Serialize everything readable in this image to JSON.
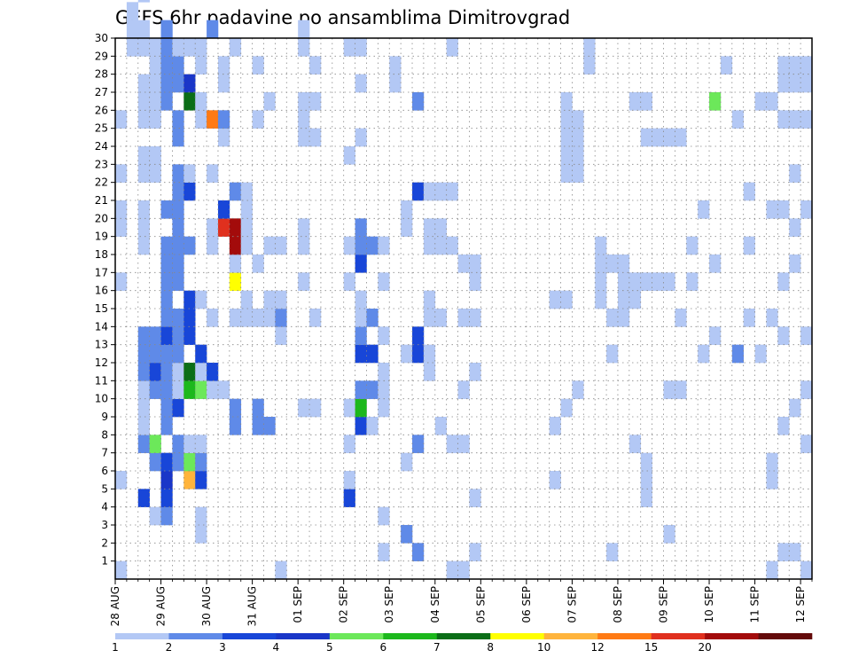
{
  "chart_data": {
    "type": "heatmap",
    "title": "GEFS 6hr padavine po ansamblima Dimitrovgrad",
    "y_ticks": [
      "1",
      "2",
      "3",
      "4",
      "5",
      "6",
      "7",
      "8",
      "9",
      "10",
      "11",
      "12",
      "13",
      "14",
      "15",
      "16",
      "17",
      "18",
      "19",
      "20",
      "21",
      "22",
      "23",
      "24",
      "25",
      "26",
      "27",
      "28",
      "29",
      "30"
    ],
    "x_ticks": [
      "28 AUG",
      "29 AUG",
      "30 AUG",
      "31 AUG",
      "01 SEP",
      "02 SEP",
      "03 SEP",
      "04 SEP",
      "05 SEP",
      "06 SEP",
      "07 SEP",
      "08 SEP",
      "09 SEP",
      "10 SEP",
      "11 SEP",
      "12 SEP"
    ],
    "legend": {
      "labels": [
        "1",
        "2",
        "3",
        "4",
        "5",
        "6",
        "7",
        "8",
        "10",
        "12",
        "15",
        "20"
      ],
      "colors": [
        "#b3c8f5",
        "#5f8ae8",
        "#1846d8",
        "#1a36c8",
        "#6ce85a",
        "#1cb81c",
        "#0b6e17",
        "#ffff00",
        "#ffb43c",
        "#ff7a14",
        "#e0301e",
        "#a30b0b",
        "#640a0a"
      ]
    },
    "cells": [
      [
        0,
        0,
        1
      ],
      [
        0,
        5,
        1
      ],
      [
        0,
        16,
        1
      ],
      [
        0,
        19,
        1
      ],
      [
        0,
        20,
        1
      ],
      [
        0,
        22,
        1
      ],
      [
        0,
        25,
        1
      ],
      [
        0,
        33,
        1
      ],
      [
        0,
        36,
        1
      ],
      [
        0,
        46,
        1
      ],
      [
        0,
        49,
        1
      ],
      [
        0,
        58,
        1
      ],
      [
        0,
        67,
        1
      ],
      [
        0,
        76,
        1
      ],
      [
        1,
        29,
        1
      ],
      [
        1,
        30,
        1
      ],
      [
        1,
        31,
        1
      ],
      [
        1,
        58,
        1
      ],
      [
        1,
        61,
        1
      ],
      [
        2,
        4,
        3
      ],
      [
        2,
        7,
        2
      ],
      [
        2,
        8,
        1
      ],
      [
        2,
        9,
        1
      ],
      [
        2,
        10,
        1
      ],
      [
        2,
        11,
        2
      ],
      [
        2,
        12,
        2
      ],
      [
        2,
        13,
        2
      ],
      [
        2,
        18,
        1
      ],
      [
        2,
        19,
        1
      ],
      [
        2,
        20,
        1
      ],
      [
        2,
        22,
        1
      ],
      [
        2,
        23,
        1
      ],
      [
        2,
        25,
        1
      ],
      [
        2,
        26,
        1
      ],
      [
        2,
        27,
        1
      ],
      [
        2,
        29,
        1
      ],
      [
        2,
        30,
        1
      ],
      [
        2,
        32,
        1
      ],
      [
        2,
        33,
        2
      ],
      [
        2,
        35,
        1
      ],
      [
        2,
        36,
        1
      ],
      [
        2,
        40,
        1
      ],
      [
        2,
        42,
        1
      ],
      [
        2,
        44,
        1
      ],
      [
        2,
        45,
        1
      ],
      [
        2,
        46,
        1
      ],
      [
        2,
        49,
        1
      ],
      [
        2,
        50,
        1
      ],
      [
        2,
        51,
        1
      ],
      [
        2,
        54,
        2
      ],
      [
        2,
        58,
        1
      ],
      [
        2,
        59,
        1
      ],
      [
        2,
        60,
        1
      ],
      [
        2,
        68,
        1
      ],
      [
        2,
        77,
        1
      ],
      [
        2,
        78,
        3
      ],
      [
        2,
        79,
        1
      ],
      [
        2,
        81,
        1
      ],
      [
        3,
        3,
        1
      ],
      [
        3,
        6,
        2
      ],
      [
        3,
        7,
        5
      ],
      [
        3,
        10,
        2
      ],
      [
        3,
        11,
        3
      ],
      [
        3,
        12,
        2
      ],
      [
        3,
        13,
        2
      ],
      [
        3,
        22,
        1
      ],
      [
        3,
        23,
        1
      ],
      [
        3,
        25,
        1
      ],
      [
        3,
        26,
        1
      ],
      [
        3,
        27,
        1
      ],
      [
        3,
        28,
        1
      ],
      [
        3,
        29,
        1
      ],
      [
        4,
        3,
        2
      ],
      [
        4,
        4,
        3
      ],
      [
        4,
        5,
        4
      ],
      [
        4,
        6,
        3
      ],
      [
        4,
        8,
        2
      ],
      [
        4,
        9,
        2
      ],
      [
        4,
        10,
        2
      ],
      [
        4,
        11,
        2
      ],
      [
        4,
        12,
        2
      ],
      [
        4,
        13,
        3
      ],
      [
        4,
        14,
        2
      ],
      [
        4,
        15,
        2
      ],
      [
        4,
        16,
        2
      ],
      [
        4,
        17,
        2
      ],
      [
        4,
        18,
        2
      ],
      [
        4,
        20,
        2
      ],
      [
        4,
        26,
        2
      ],
      [
        4,
        27,
        2
      ],
      [
        4,
        28,
        2
      ],
      [
        4,
        29,
        2
      ],
      [
        4,
        30,
        2
      ],
      [
        5,
        6,
        2
      ],
      [
        5,
        7,
        2
      ],
      [
        5,
        9,
        3
      ],
      [
        5,
        10,
        1
      ],
      [
        5,
        11,
        1
      ],
      [
        5,
        12,
        2
      ],
      [
        5,
        13,
        2
      ],
      [
        5,
        14,
        2
      ],
      [
        5,
        16,
        2
      ],
      [
        5,
        17,
        2
      ],
      [
        5,
        18,
        2
      ],
      [
        5,
        19,
        2
      ],
      [
        5,
        20,
        2
      ],
      [
        5,
        21,
        2
      ],
      [
        5,
        22,
        2
      ],
      [
        5,
        24,
        2
      ],
      [
        5,
        25,
        2
      ],
      [
        5,
        27,
        2
      ],
      [
        5,
        28,
        2
      ],
      [
        5,
        29,
        1
      ],
      [
        6,
        5,
        9
      ],
      [
        6,
        6,
        5
      ],
      [
        6,
        7,
        1
      ],
      [
        6,
        10,
        6
      ],
      [
        6,
        11,
        7
      ],
      [
        6,
        13,
        3
      ],
      [
        6,
        14,
        3
      ],
      [
        6,
        15,
        3
      ],
      [
        6,
        18,
        2
      ],
      [
        6,
        21,
        3
      ],
      [
        6,
        22,
        1
      ],
      [
        6,
        26,
        7
      ],
      [
        6,
        27,
        4
      ],
      [
        6,
        29,
        1
      ],
      [
        7,
        2,
        1
      ],
      [
        7,
        3,
        1
      ],
      [
        7,
        5,
        3
      ],
      [
        7,
        6,
        2
      ],
      [
        7,
        7,
        1
      ],
      [
        7,
        10,
        5
      ],
      [
        7,
        11,
        1
      ],
      [
        7,
        12,
        3
      ],
      [
        7,
        15,
        1
      ],
      [
        7,
        25,
        1
      ],
      [
        7,
        26,
        1
      ],
      [
        7,
        28,
        1
      ],
      [
        7,
        29,
        1
      ],
      [
        8,
        10,
        1
      ],
      [
        8,
        11,
        3
      ],
      [
        8,
        14,
        1
      ],
      [
        8,
        18,
        1
      ],
      [
        8,
        19,
        1
      ],
      [
        8,
        22,
        1
      ],
      [
        8,
        25,
        10
      ],
      [
        8,
        30,
        2
      ],
      [
        9,
        10,
        1
      ],
      [
        9,
        19,
        11
      ],
      [
        9,
        20,
        3
      ],
      [
        9,
        24,
        1
      ],
      [
        9,
        25,
        2
      ],
      [
        9,
        27,
        1
      ],
      [
        9,
        28,
        1
      ],
      [
        10,
        8,
        2
      ],
      [
        10,
        9,
        2
      ],
      [
        10,
        14,
        1
      ],
      [
        10,
        16,
        8
      ],
      [
        10,
        17,
        1
      ],
      [
        10,
        18,
        12
      ],
      [
        10,
        19,
        12
      ],
      [
        10,
        21,
        2
      ],
      [
        10,
        29,
        1
      ],
      [
        11,
        14,
        1
      ],
      [
        11,
        15,
        1
      ],
      [
        11,
        18,
        1
      ],
      [
        11,
        19,
        1
      ],
      [
        11,
        20,
        1
      ],
      [
        11,
        21,
        1
      ],
      [
        12,
        8,
        2
      ],
      [
        12,
        9,
        2
      ],
      [
        12,
        14,
        1
      ],
      [
        12,
        17,
        1
      ],
      [
        12,
        25,
        1
      ],
      [
        12,
        28,
        1
      ],
      [
        13,
        8,
        2
      ],
      [
        13,
        14,
        1
      ],
      [
        13,
        15,
        1
      ],
      [
        13,
        18,
        1
      ],
      [
        13,
        26,
        1
      ],
      [
        14,
        0,
        1
      ],
      [
        14,
        13,
        1
      ],
      [
        14,
        14,
        2
      ],
      [
        14,
        15,
        1
      ],
      [
        14,
        18,
        1
      ],
      [
        16,
        9,
        1
      ],
      [
        16,
        16,
        1
      ],
      [
        16,
        18,
        1
      ],
      [
        16,
        19,
        1
      ],
      [
        16,
        24,
        1
      ],
      [
        16,
        25,
        1
      ],
      [
        16,
        26,
        1
      ],
      [
        16,
        29,
        1
      ],
      [
        16,
        30,
        1
      ],
      [
        17,
        9,
        1
      ],
      [
        17,
        14,
        1
      ],
      [
        17,
        24,
        1
      ],
      [
        17,
        26,
        1
      ],
      [
        17,
        28,
        1
      ],
      [
        20,
        4,
        3
      ],
      [
        20,
        5,
        1
      ],
      [
        20,
        7,
        1
      ],
      [
        20,
        9,
        1
      ],
      [
        20,
        16,
        1
      ],
      [
        20,
        18,
        1
      ],
      [
        20,
        23,
        1
      ],
      [
        20,
        29,
        1
      ],
      [
        21,
        8,
        3
      ],
      [
        21,
        9,
        6
      ],
      [
        21,
        10,
        2
      ],
      [
        21,
        12,
        3
      ],
      [
        21,
        13,
        2
      ],
      [
        21,
        14,
        1
      ],
      [
        21,
        15,
        1
      ],
      [
        21,
        17,
        3
      ],
      [
        21,
        18,
        2
      ],
      [
        21,
        19,
        2
      ],
      [
        21,
        24,
        1
      ],
      [
        21,
        27,
        1
      ],
      [
        21,
        29,
        1
      ],
      [
        22,
        8,
        1
      ],
      [
        22,
        10,
        2
      ],
      [
        22,
        12,
        3
      ],
      [
        22,
        14,
        2
      ],
      [
        22,
        18,
        2
      ],
      [
        23,
        1,
        1
      ],
      [
        23,
        3,
        1
      ],
      [
        23,
        9,
        1
      ],
      [
        23,
        10,
        1
      ],
      [
        23,
        11,
        1
      ],
      [
        23,
        13,
        1
      ],
      [
        23,
        16,
        1
      ],
      [
        23,
        18,
        1
      ],
      [
        24,
        27,
        1
      ],
      [
        24,
        28,
        1
      ],
      [
        25,
        2,
        2
      ],
      [
        25,
        6,
        1
      ],
      [
        25,
        12,
        1
      ],
      [
        25,
        19,
        1
      ],
      [
        25,
        20,
        1
      ],
      [
        26,
        1,
        2
      ],
      [
        26,
        7,
        2
      ],
      [
        26,
        12,
        3
      ],
      [
        26,
        13,
        3
      ],
      [
        26,
        21,
        3
      ],
      [
        26,
        26,
        2
      ],
      [
        27,
        11,
        1
      ],
      [
        27,
        12,
        1
      ],
      [
        27,
        14,
        1
      ],
      [
        27,
        15,
        1
      ],
      [
        27,
        18,
        1
      ],
      [
        27,
        19,
        1
      ],
      [
        27,
        21,
        1
      ],
      [
        28,
        8,
        1
      ],
      [
        28,
        14,
        1
      ],
      [
        28,
        18,
        1
      ],
      [
        28,
        19,
        1
      ],
      [
        28,
        21,
        1
      ],
      [
        29,
        0,
        1
      ],
      [
        29,
        7,
        1
      ],
      [
        29,
        18,
        1
      ],
      [
        29,
        21,
        1
      ],
      [
        29,
        29,
        1
      ],
      [
        30,
        0,
        1
      ],
      [
        30,
        7,
        1
      ],
      [
        30,
        10,
        1
      ],
      [
        30,
        14,
        1
      ],
      [
        30,
        17,
        1
      ],
      [
        31,
        1,
        1
      ],
      [
        31,
        4,
        1
      ],
      [
        31,
        11,
        1
      ],
      [
        31,
        14,
        1
      ],
      [
        31,
        16,
        1
      ],
      [
        31,
        17,
        1
      ],
      [
        38,
        5,
        1
      ],
      [
        38,
        8,
        1
      ],
      [
        38,
        15,
        1
      ],
      [
        39,
        9,
        1
      ],
      [
        39,
        15,
        1
      ],
      [
        39,
        22,
        1
      ],
      [
        39,
        23,
        1
      ],
      [
        39,
        24,
        1
      ],
      [
        39,
        25,
        1
      ],
      [
        39,
        26,
        1
      ],
      [
        40,
        10,
        1
      ],
      [
        40,
        22,
        1
      ],
      [
        40,
        23,
        1
      ],
      [
        40,
        24,
        1
      ],
      [
        40,
        25,
        1
      ],
      [
        41,
        28,
        1
      ],
      [
        41,
        29,
        1
      ],
      [
        42,
        15,
        1
      ],
      [
        42,
        16,
        1
      ],
      [
        42,
        17,
        1
      ],
      [
        42,
        18,
        1
      ],
      [
        43,
        1,
        1
      ],
      [
        43,
        12,
        1
      ],
      [
        43,
        14,
        1
      ],
      [
        43,
        17,
        1
      ],
      [
        44,
        14,
        1
      ],
      [
        44,
        15,
        1
      ],
      [
        44,
        16,
        1
      ],
      [
        44,
        17,
        1
      ],
      [
        45,
        7,
        1
      ],
      [
        45,
        15,
        1
      ],
      [
        45,
        16,
        1
      ],
      [
        45,
        26,
        1
      ],
      [
        46,
        4,
        1
      ],
      [
        46,
        5,
        1
      ],
      [
        46,
        6,
        1
      ],
      [
        46,
        16,
        1
      ],
      [
        46,
        24,
        1
      ],
      [
        46,
        26,
        1
      ],
      [
        47,
        16,
        1
      ],
      [
        47,
        24,
        1
      ],
      [
        48,
        2,
        1
      ],
      [
        48,
        10,
        1
      ],
      [
        48,
        16,
        1
      ],
      [
        48,
        24,
        1
      ],
      [
        49,
        10,
        1
      ],
      [
        49,
        14,
        1
      ],
      [
        49,
        24,
        1
      ],
      [
        50,
        16,
        1
      ],
      [
        50,
        18,
        1
      ],
      [
        51,
        12,
        1
      ],
      [
        51,
        20,
        1
      ],
      [
        52,
        13,
        1
      ],
      [
        52,
        17,
        1
      ],
      [
        52,
        26,
        5
      ],
      [
        53,
        28,
        1
      ],
      [
        54,
        12,
        2
      ],
      [
        54,
        25,
        1
      ],
      [
        55,
        14,
        1
      ],
      [
        55,
        18,
        1
      ],
      [
        55,
        21,
        1
      ],
      [
        56,
        12,
        1
      ],
      [
        56,
        26,
        1
      ],
      [
        57,
        0,
        1
      ],
      [
        57,
        5,
        1
      ],
      [
        57,
        6,
        1
      ],
      [
        57,
        14,
        1
      ],
      [
        57,
        20,
        1
      ],
      [
        57,
        26,
        1
      ],
      [
        58,
        1,
        1
      ],
      [
        58,
        8,
        1
      ],
      [
        58,
        13,
        1
      ],
      [
        58,
        16,
        1
      ],
      [
        58,
        20,
        1
      ],
      [
        58,
        25,
        1
      ],
      [
        58,
        27,
        1
      ],
      [
        58,
        28,
        1
      ],
      [
        59,
        1,
        1
      ],
      [
        59,
        9,
        1
      ],
      [
        59,
        17,
        1
      ],
      [
        59,
        19,
        1
      ],
      [
        59,
        22,
        1
      ],
      [
        59,
        25,
        1
      ],
      [
        59,
        27,
        1
      ],
      [
        59,
        28,
        1
      ],
      [
        60,
        0,
        1
      ],
      [
        60,
        7,
        1
      ],
      [
        60,
        10,
        1
      ],
      [
        60,
        13,
        1
      ],
      [
        60,
        20,
        1
      ],
      [
        60,
        25,
        1
      ],
      [
        60,
        27,
        1
      ],
      [
        60,
        28,
        1
      ]
    ]
  }
}
